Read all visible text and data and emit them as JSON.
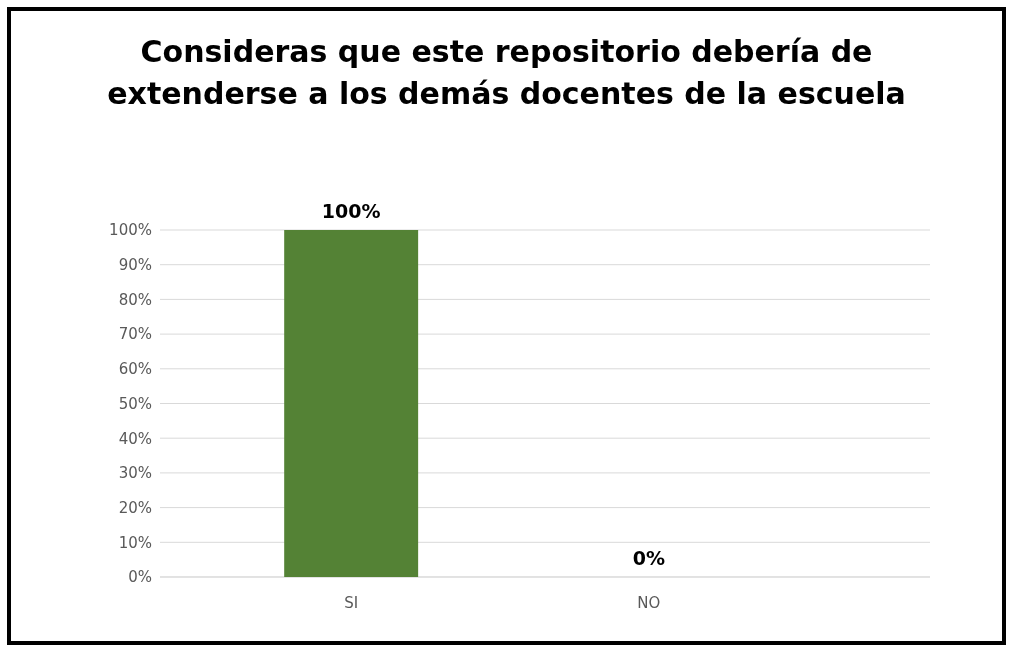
{
  "chart_data": {
    "type": "bar",
    "title": "Consideras que este repositorio debería de extenderse a los demás docentes de la escuela",
    "categories": [
      "SI",
      "NO"
    ],
    "values": [
      100,
      0
    ],
    "color": "#548235",
    "value_labels": [
      "100%",
      "0%"
    ],
    "ylim": [
      0,
      100
    ],
    "yticks": [
      {
        "value": 0,
        "label": "0%"
      },
      {
        "value": 10,
        "label": "10%"
      },
      {
        "value": 20,
        "label": "20%"
      },
      {
        "value": 30,
        "label": "30%"
      },
      {
        "value": 40,
        "label": "40%"
      },
      {
        "value": 50,
        "label": "50%"
      },
      {
        "value": 60,
        "label": "60%"
      },
      {
        "value": 70,
        "label": "70%"
      },
      {
        "value": 80,
        "label": "80%"
      },
      {
        "value": 90,
        "label": "90%"
      },
      {
        "value": 100,
        "label": "100%"
      }
    ],
    "grid": "y"
  }
}
